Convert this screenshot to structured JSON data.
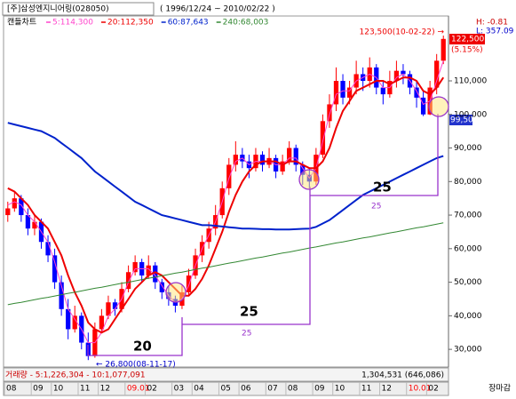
{
  "chart_data": {
    "type": "candlestick",
    "title": "[주]삼성엔지니어링(028050)",
    "subtitle": "( 1996/12/24 ~ 2010/02/22 )",
    "legend_title": "캔들차트",
    "h_label": "H: -0.81",
    "l_label": "L: 357.09",
    "high_note": "123,500(10-02-22) →",
    "low_note": "← 26,800(08-11-17)",
    "last_price": "122,500",
    "change": "(5.15%)",
    "marker_price": "99,500",
    "bracket_labels": [
      "20",
      "25",
      "25"
    ],
    "bracket_small_labels": [
      "25",
      "25"
    ],
    "volume_label": "거래량 - 5:1,226,304 - 10:1,077,091",
    "volume_value": "1,304,531 (646,086)",
    "status": "장마감",
    "up_color": "#ff0000",
    "down_color": "#0000ff",
    "year_label_color": "#ff0000",
    "categories": [
      "08",
      null,
      null,
      null,
      "09",
      null,
      null,
      "10",
      null,
      null,
      null,
      "11",
      null,
      null,
      "12",
      null,
      null,
      null,
      "09.01",
      null,
      null,
      "02",
      null,
      null,
      null,
      "03",
      null,
      null,
      "04",
      null,
      null,
      null,
      "05",
      null,
      null,
      "06",
      null,
      null,
      null,
      "07",
      null,
      null,
      "08",
      null,
      null,
      null,
      "09",
      null,
      null,
      "10",
      null,
      null,
      null,
      "11",
      null,
      null,
      "12",
      null,
      null,
      null,
      "10.01",
      null,
      null,
      "02",
      null,
      null
    ],
    "open": [
      70000,
      72000,
      75000,
      70000,
      66000,
      68000,
      62000,
      58000,
      50000,
      42000,
      36000,
      40000,
      32000,
      28000,
      36000,
      40000,
      44000,
      42000,
      48000,
      53000,
      56000,
      52000,
      55000,
      50000,
      47000,
      45000,
      43000,
      47000,
      52000,
      58000,
      62000,
      66000,
      70000,
      78000,
      85000,
      88000,
      86000,
      84000,
      88000,
      85000,
      87000,
      83000,
      86000,
      90000,
      85000,
      82000,
      80000,
      88000,
      98000,
      103000,
      110000,
      105000,
      108000,
      112000,
      110000,
      114000,
      108000,
      106000,
      110000,
      113000,
      112000,
      108000,
      105000,
      100000,
      108000,
      116000
    ],
    "high": [
      74000,
      77000,
      76000,
      72000,
      70000,
      69000,
      64000,
      60000,
      52000,
      45000,
      43000,
      41000,
      35000,
      38000,
      42000,
      46000,
      45000,
      50000,
      55000,
      58000,
      57000,
      58000,
      56000,
      51000,
      49000,
      46000,
      49000,
      54000,
      60000,
      64000,
      68000,
      73000,
      80000,
      87000,
      92000,
      90000,
      88000,
      90000,
      89000,
      90000,
      88000,
      88000,
      92000,
      91000,
      86000,
      84000,
      90000,
      100000,
      106000,
      114000,
      112000,
      110000,
      116000,
      114000,
      117000,
      115000,
      110000,
      113000,
      116000,
      115000,
      113000,
      110000,
      107000,
      110000,
      118000,
      123500
    ],
    "low": [
      68000,
      71000,
      68000,
      64000,
      64000,
      60000,
      56000,
      48000,
      40000,
      33000,
      35000,
      30000,
      26800,
      27500,
      35000,
      39000,
      40000,
      41000,
      47000,
      52000,
      50000,
      51000,
      48000,
      45000,
      43000,
      41000,
      42000,
      46000,
      51000,
      56000,
      60000,
      64000,
      69000,
      76000,
      83000,
      84000,
      81000,
      83000,
      83000,
      84000,
      81000,
      82000,
      85000,
      83000,
      79000,
      78000,
      79000,
      87000,
      96000,
      101000,
      103000,
      103000,
      106000,
      107000,
      108000,
      106000,
      103000,
      105000,
      108000,
      109000,
      106000,
      102000,
      99500,
      99800,
      106000,
      115000
    ],
    "close": [
      72000,
      75000,
      70000,
      66000,
      68000,
      62000,
      58000,
      50000,
      42000,
      36000,
      40000,
      32000,
      28000,
      36000,
      40000,
      44000,
      42000,
      48000,
      53000,
      56000,
      52000,
      55000,
      50000,
      47000,
      45000,
      43000,
      47000,
      52000,
      58000,
      62000,
      66000,
      70000,
      78000,
      85000,
      88000,
      86000,
      84000,
      88000,
      85000,
      87000,
      83000,
      86000,
      90000,
      85000,
      82000,
      80000,
      88000,
      98000,
      103000,
      110000,
      105000,
      108000,
      112000,
      110000,
      114000,
      108000,
      106000,
      110000,
      113000,
      112000,
      108000,
      105000,
      100000,
      108000,
      116000,
      122500
    ],
    "series": [
      {
        "name": "5:114,300",
        "color": "#ff44cc",
        "width": 1,
        "values": [
          73000,
          74000,
          73000,
          70000,
          68000,
          65000,
          62000,
          56000,
          49000,
          42000,
          39000,
          36000,
          32000,
          32000,
          35000,
          40000,
          42000,
          45000,
          50000,
          54000,
          54000,
          54000,
          52000,
          49000,
          46000,
          44000,
          45000,
          49000,
          55000,
          60000,
          64000,
          68000,
          74000,
          81000,
          86000,
          87000,
          85000,
          86000,
          86000,
          86000,
          85000,
          85000,
          87000,
          87000,
          84000,
          81000,
          84000,
          92000,
          100000,
          106000,
          107000,
          107000,
          110000,
          111000,
          112000,
          111000,
          108000,
          108000,
          111000,
          112000,
          110000,
          107000,
          103000,
          104000,
          110000,
          116000
        ]
      },
      {
        "name": "20:112,350",
        "color": "#ee0000",
        "width": 2,
        "values": [
          78000,
          77000,
          75000,
          73000,
          70000,
          68000,
          66000,
          62000,
          58000,
          52000,
          47000,
          43000,
          38000,
          36000,
          35000,
          36000,
          39000,
          42000,
          45000,
          48000,
          50000,
          52000,
          53000,
          52000,
          50000,
          48000,
          46000,
          46000,
          48000,
          51000,
          55000,
          60000,
          65000,
          71000,
          76000,
          80000,
          83000,
          85000,
          86000,
          86000,
          86000,
          85000,
          86000,
          86000,
          85000,
          84000,
          84000,
          86000,
          90000,
          96000,
          101000,
          104000,
          107000,
          108000,
          109000,
          110000,
          110000,
          109000,
          110000,
          111000,
          111000,
          110000,
          107000,
          106000,
          108000,
          111000
        ]
      },
      {
        "name": "60:87,643",
        "color": "#0022cc",
        "width": 2,
        "values": [
          97500,
          97000,
          96500,
          96000,
          95500,
          95000,
          94000,
          93000,
          91500,
          90000,
          88500,
          87000,
          85000,
          83000,
          81500,
          80000,
          78500,
          77000,
          75500,
          74000,
          73000,
          72000,
          71000,
          70000,
          69500,
          69000,
          68500,
          68000,
          67500,
          67000,
          67000,
          66800,
          66600,
          66400,
          66200,
          66000,
          66000,
          65900,
          65800,
          65800,
          65700,
          65700,
          65700,
          65800,
          65900,
          66000,
          66500,
          67500,
          68500,
          70000,
          71500,
          73000,
          74500,
          76000,
          77000,
          78000,
          79000,
          80000,
          81000,
          82000,
          83000,
          84000,
          85000,
          86000,
          87000,
          87600
        ]
      },
      {
        "name": "240:68,003",
        "color": "#338833",
        "width": 1,
        "values": [
          43300,
          43700,
          44000,
          44400,
          44800,
          45200,
          45500,
          45900,
          46300,
          46700,
          47000,
          47400,
          47800,
          48200,
          48500,
          48900,
          49300,
          49700,
          50000,
          50400,
          50800,
          51200,
          51500,
          51900,
          52300,
          52700,
          53000,
          53400,
          53800,
          54200,
          54500,
          54900,
          55300,
          55700,
          56000,
          56400,
          56800,
          57200,
          57500,
          57900,
          58300,
          58700,
          59000,
          59400,
          59800,
          60200,
          60500,
          60900,
          61300,
          61700,
          62000,
          62400,
          62800,
          63200,
          63500,
          63900,
          64300,
          64700,
          65000,
          65400,
          65800,
          66200,
          66500,
          66900,
          67300,
          67700
        ]
      }
    ],
    "ylim": [
      25000,
      128800
    ],
    "yticks": [
      {
        "value": 30000,
        "label": "30,000"
      },
      {
        "value": 40000,
        "label": "40,000"
      },
      {
        "value": 50000,
        "label": "50,000"
      },
      {
        "value": 60000,
        "label": "60,000"
      },
      {
        "value": 70000,
        "label": "70,000"
      },
      {
        "value": 80000,
        "label": "80,000"
      },
      {
        "value": 90000,
        "label": "90,000"
      },
      {
        "value": 100000,
        "label": "100,000"
      },
      {
        "value": 110000,
        "label": "110,000"
      }
    ]
  }
}
